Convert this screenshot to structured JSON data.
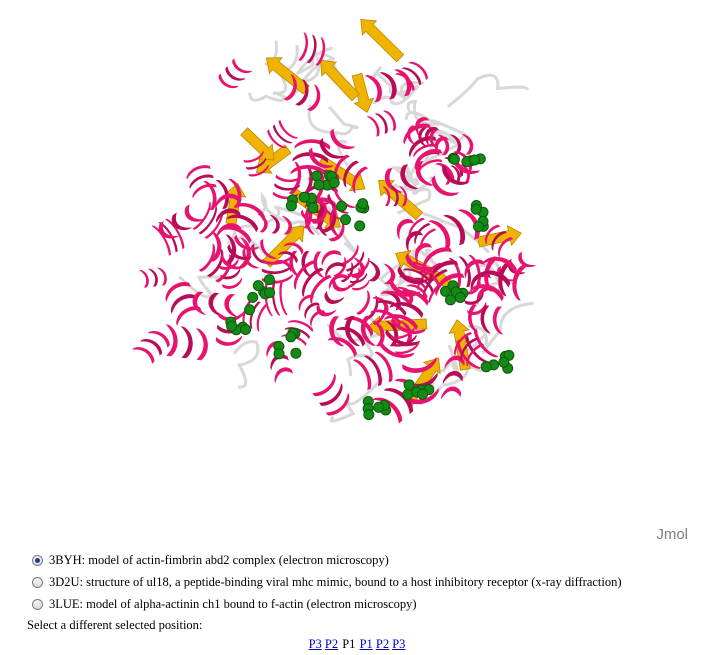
{
  "viewer": {
    "label": "Jmol",
    "colors": {
      "helix": "#e6136f",
      "helix_dark": "#b80c57",
      "sheet": "#f0b400",
      "coil": "#d8d8d8",
      "ligand": "#168a16"
    }
  },
  "options": [
    {
      "id": "3BYH",
      "text": "3BYH: model of actin-fimbrin abd2 complex (electron microscopy)",
      "checked": true
    },
    {
      "id": "3D2U",
      "text": "3D2U: structure of ul18, a peptide-binding viral mhc mimic, bound to a host inhibitory receptor (x-ray diffraction)",
      "checked": false
    },
    {
      "id": "3LUE",
      "text": "3LUE: model of alpha-actinin ch1 bound to f-actin (electron microscopy)",
      "checked": false
    }
  ],
  "select_label": "Select a different selected position:",
  "pager": {
    "links_before": [
      "P3",
      "P2"
    ],
    "current": "P1",
    "links_after": [
      "P1",
      "P2",
      "P3"
    ]
  }
}
